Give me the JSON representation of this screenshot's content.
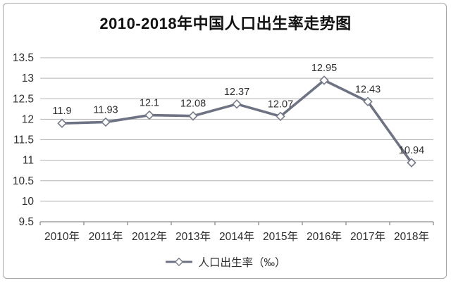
{
  "title": "2010-2018年中国人口出生率走势图",
  "legend": {
    "label": "人口出生率（‰）"
  },
  "colors": {
    "line": "#6e7383",
    "marker_fill": "#ffffff",
    "marker_stroke": "#75798a",
    "grid": "#b3b3b3",
    "axis": "#8c8c8c",
    "text": "#2e2e2e",
    "title_text": "#111111",
    "border": "#a6a6a6"
  },
  "chart_data": {
    "type": "line",
    "title": "2010-2018年中国人口出生率走势图",
    "categories": [
      "2010年",
      "2011年",
      "2012年",
      "2013年",
      "2014年",
      "2015年",
      "2016年",
      "2017年",
      "2018年"
    ],
    "series": [
      {
        "name": "人口出生率（‰）",
        "values": [
          11.9,
          11.93,
          12.1,
          12.08,
          12.37,
          12.07,
          12.95,
          12.43,
          10.94
        ],
        "labels": [
          "11.9",
          "11.93",
          "12.1",
          "12.08",
          "12.37",
          "12.07",
          "12.95",
          "12.43",
          "10.94"
        ]
      }
    ],
    "xlabel": "",
    "ylabel": "",
    "ylim": [
      9.5,
      13.5
    ],
    "ytick_step": 0.5,
    "ytick_labels": [
      "13.5",
      "13",
      "12.5",
      "12",
      "11.5",
      "11",
      "10.5",
      "10",
      "9.5"
    ],
    "grid": true,
    "legend_position": "bottom"
  }
}
